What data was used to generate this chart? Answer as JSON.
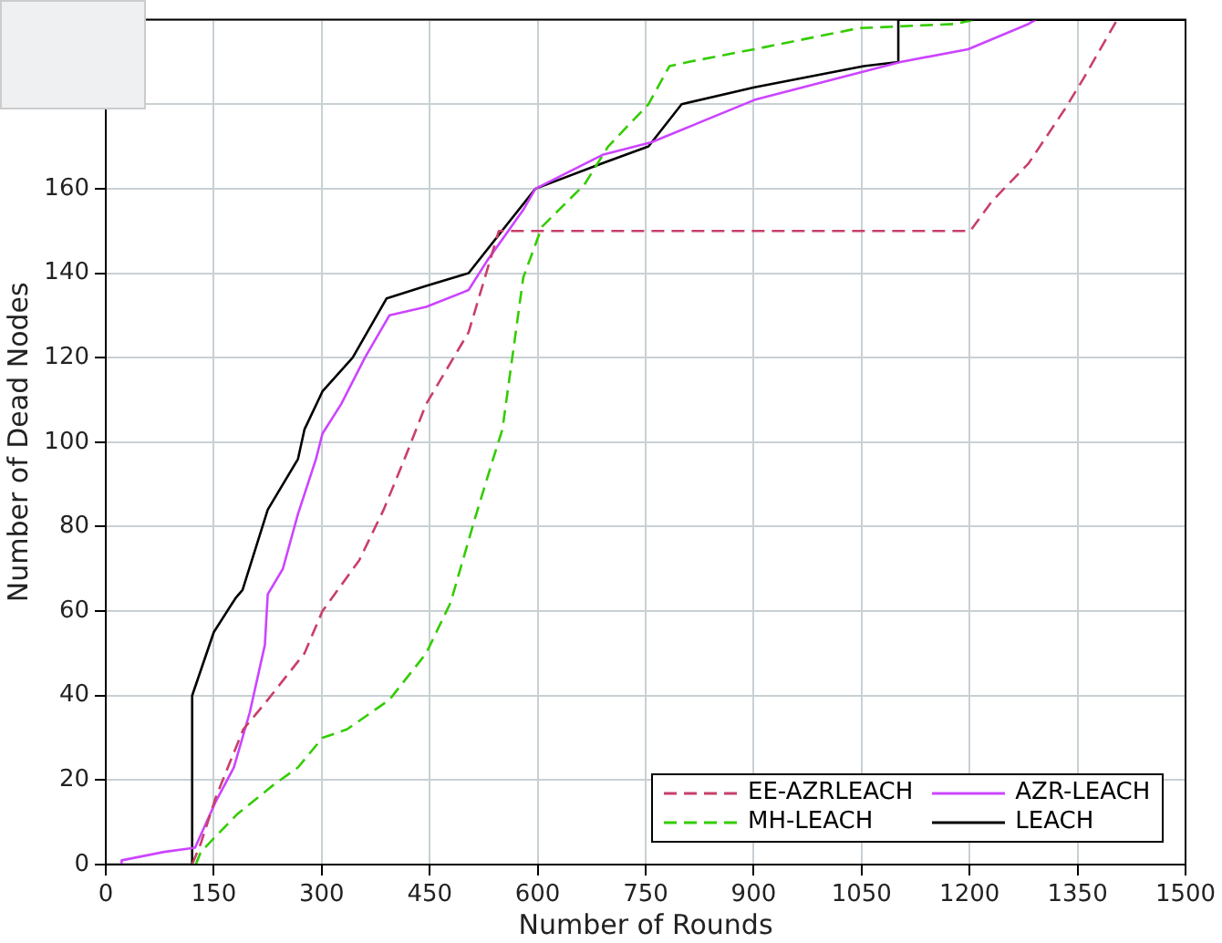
{
  "chart_data": {
    "type": "line",
    "xlabel": "Number of Rounds",
    "ylabel": "Number of Dead Nodes",
    "xlim": [
      0,
      1500
    ],
    "xticks": [
      0,
      150,
      300,
      450,
      600,
      750,
      900,
      1050,
      1200,
      1350,
      1500
    ],
    "ylim": [
      0,
      200
    ],
    "yticks": [
      0,
      20,
      40,
      60,
      80,
      100,
      120,
      140,
      160,
      {
        "value": 180,
        "label": null
      },
      {
        "value": 200,
        "label": null
      }
    ],
    "grid": true,
    "legend": "bottom right",
    "marker": "none",
    "series": [
      {
        "name": "EE-AZRLEACH",
        "color": "#c8406a",
        "line_style": "dashed",
        "x": [
          120,
          132,
          153,
          191,
          225,
          276,
          301,
          352,
          386,
          415,
          445,
          504,
          546,
          1201,
          1231,
          1282,
          1333,
          1358,
          1405
        ],
        "values": [
          0,
          5,
          16,
          32,
          39,
          50,
          60,
          72,
          84,
          96,
          109,
          126,
          150,
          150,
          157,
          166,
          179,
          186,
          200
        ]
      },
      {
        "name": "AZR-LEACH",
        "color": "#cc44ff",
        "line_style": "solid",
        "x": [
          22,
          22,
          81,
          124,
          153,
          178,
          200,
          221,
          225,
          246,
          267,
          292,
          301,
          327,
          360,
          394,
          445,
          504,
          530,
          580,
          597,
          690,
          758,
          901,
          1104,
          1198,
          1282,
          1292
        ],
        "values": [
          0,
          1,
          3,
          4,
          15,
          23,
          36,
          52,
          64,
          70,
          83,
          96,
          102,
          109,
          120,
          130,
          132,
          136,
          143,
          155,
          160,
          168,
          171,
          181,
          190,
          193,
          199,
          200
        ]
      },
      {
        "name": "MH-LEACH",
        "color": "#33cc00",
        "line_style": "dashed",
        "x": [
          125,
          132,
          183,
          234,
          267,
          301,
          335,
          394,
          445,
          479,
          513,
          538,
          551,
          580,
          606,
          665,
          698,
          754,
          783,
          809,
          901,
          1046,
          1180,
          1206
        ],
        "values": [
          0,
          3,
          12,
          19,
          23,
          30,
          32,
          39,
          50,
          62,
          82,
          96,
          103,
          139,
          151,
          161,
          170,
          180,
          189,
          190,
          193,
          198,
          199,
          200
        ]
      },
      {
        "name": "LEACH",
        "color": "#000000",
        "line_style": "solid",
        "x": [
          0,
          120,
          120,
          150,
          180,
          190,
          225,
          267,
          276,
          301,
          343,
          390,
          445,
          504,
          555,
          597,
          690,
          754,
          800,
          901,
          1053,
          1101,
          1101,
          1500
        ],
        "values": [
          0,
          0,
          40,
          55,
          63,
          65,
          84,
          96,
          103,
          112,
          120,
          134,
          137,
          140,
          151,
          160,
          166,
          170,
          180,
          184,
          189,
          190,
          200,
          200
        ]
      }
    ]
  }
}
